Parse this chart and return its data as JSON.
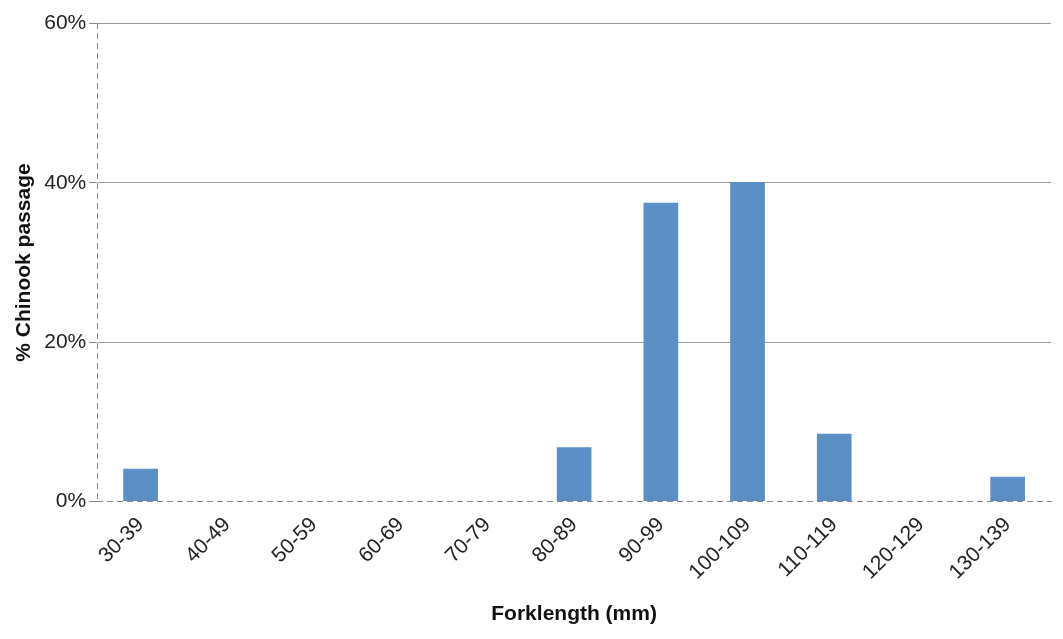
{
  "chart_data": {
    "type": "bar",
    "xlabel": "Forklength (mm)",
    "ylabel": "% Chinook passage",
    "categories": [
      "30-39",
      "40-49",
      "50-59",
      "60-69",
      "70-79",
      "80-89",
      "90-99",
      "100-109",
      "110-119",
      "120-129",
      "130-139"
    ],
    "values": [
      4.1,
      0,
      0,
      0,
      0,
      6.8,
      37.5,
      40.1,
      8.5,
      0,
      3.1
    ],
    "color": "#5b8fc5",
    "ylim": [
      0,
      60
    ],
    "yticks": [
      {
        "value": 0,
        "label": "0%"
      },
      {
        "value": 20,
        "label": "20%"
      },
      {
        "value": 40,
        "label": "40%"
      },
      {
        "value": 60,
        "label": "60%"
      }
    ],
    "grid": "y",
    "legend": false
  }
}
